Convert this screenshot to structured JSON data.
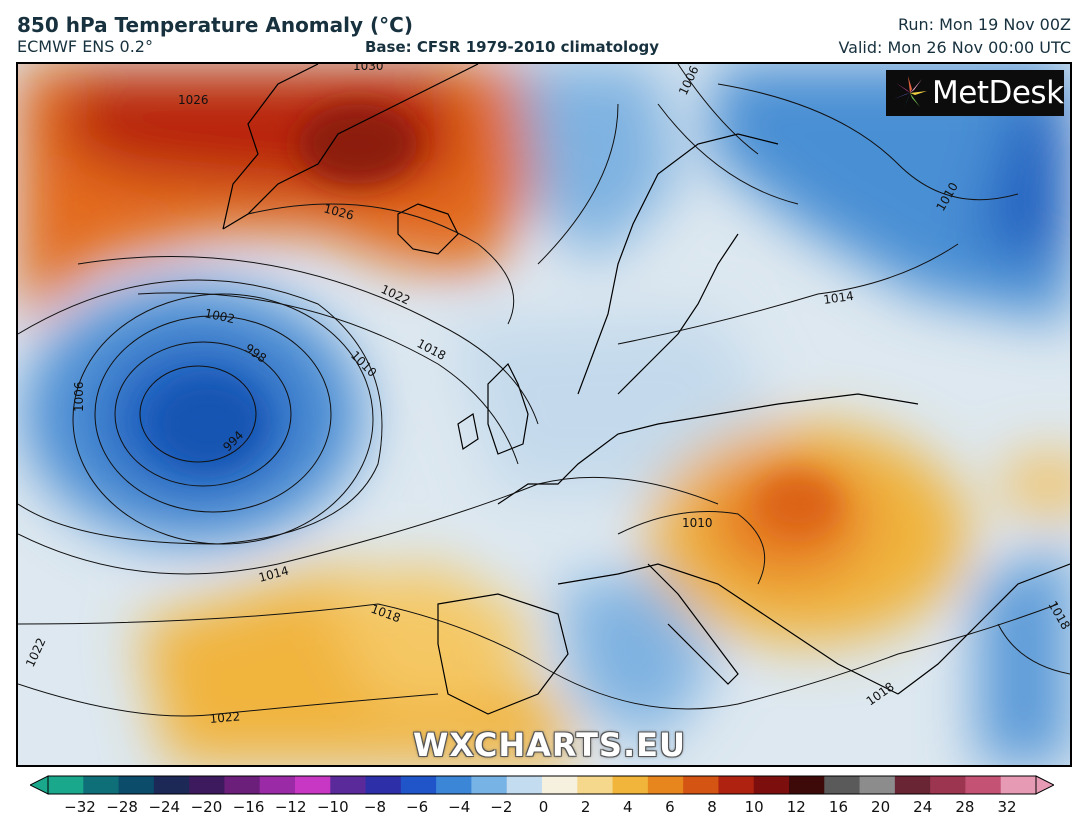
{
  "header": {
    "title": "850 hPa Temperature Anomaly (°C)",
    "model": "ECMWF ENS 0.2°",
    "base": "Base: CFSR 1979-2010 climatology",
    "run": "Run: Mon 19 Nov 00Z",
    "valid": "Valid: Mon 26 Nov 00:00 UTC"
  },
  "logo": {
    "text": "MetDesk",
    "icon": "metdesk-pinwheel-icon"
  },
  "watermark": "WXCHARTS.EU",
  "isobars": {
    "unit": "hPa",
    "labels": [
      "1026",
      "1026",
      "1030",
      "1006",
      "1010",
      "1022",
      "1018",
      "1002",
      "998",
      "1010",
      "1006",
      "994",
      "1014",
      "1018",
      "1022",
      "1010",
      "1022",
      "1014",
      "1018",
      "1018"
    ]
  },
  "colorbar": {
    "unit": "°C",
    "ticks": [
      "−32",
      "−28",
      "−24",
      "−20",
      "−16",
      "−12",
      "−10",
      "−8",
      "−6",
      "−4",
      "−2",
      "0",
      "2",
      "4",
      "6",
      "8",
      "10",
      "12",
      "16",
      "20",
      "24",
      "28",
      "32"
    ],
    "colors": [
      "#1aa88c",
      "#0f6f78",
      "#0b4c6b",
      "#1c2957",
      "#3d1a5e",
      "#6b1f7a",
      "#9b2aa6",
      "#c837c4",
      "#5a2a9a",
      "#2c2fa8",
      "#1f55c9",
      "#3c86d8",
      "#78b3e6",
      "#c4dcef",
      "#f6f1df",
      "#f5d88c",
      "#f0b53a",
      "#e8861e",
      "#d45513",
      "#b02210",
      "#7c0f0e",
      "#3d0a09",
      "#5a5a5a",
      "#8c8c8c",
      "#6a2535",
      "#9b3550",
      "#c45275",
      "#e69ab4"
    ]
  }
}
